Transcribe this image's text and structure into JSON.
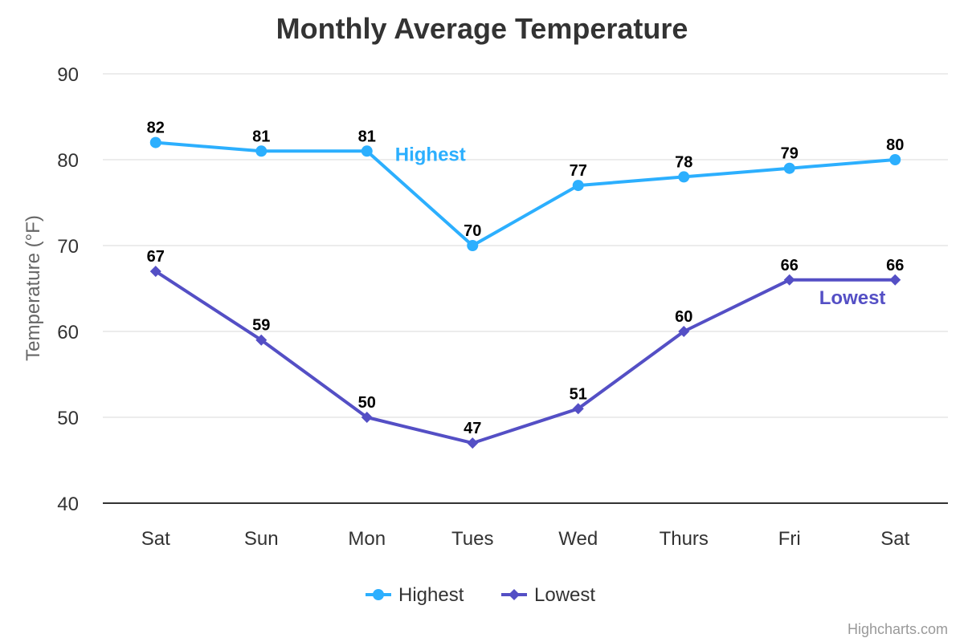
{
  "chart_data": {
    "type": "line",
    "title": "Monthly Average Temperature",
    "ylabel": "Temperature (°F)",
    "xlabel": "",
    "categories": [
      "Sat",
      "Sun",
      "Mon",
      "Tues",
      "Wed",
      "Thurs",
      "Fri",
      "Sat"
    ],
    "ylim": [
      40,
      90
    ],
    "yticks": [
      40,
      50,
      60,
      70,
      80,
      90
    ],
    "grid": true,
    "legend_position": "bottom-center",
    "series": [
      {
        "name": "Highest",
        "values": [
          82,
          81,
          81,
          70,
          77,
          78,
          79,
          80
        ],
        "color": "#2caffe",
        "marker": "circle",
        "annotation": "Highest"
      },
      {
        "name": "Lowest",
        "values": [
          67,
          59,
          50,
          47,
          51,
          60,
          66,
          66
        ],
        "color": "#544fc5",
        "marker": "diamond",
        "annotation": "Lowest"
      }
    ]
  },
  "credits": "Highcharts.com",
  "colors": {
    "gridline": "#e6e6e6",
    "axis_line": "#333333"
  }
}
